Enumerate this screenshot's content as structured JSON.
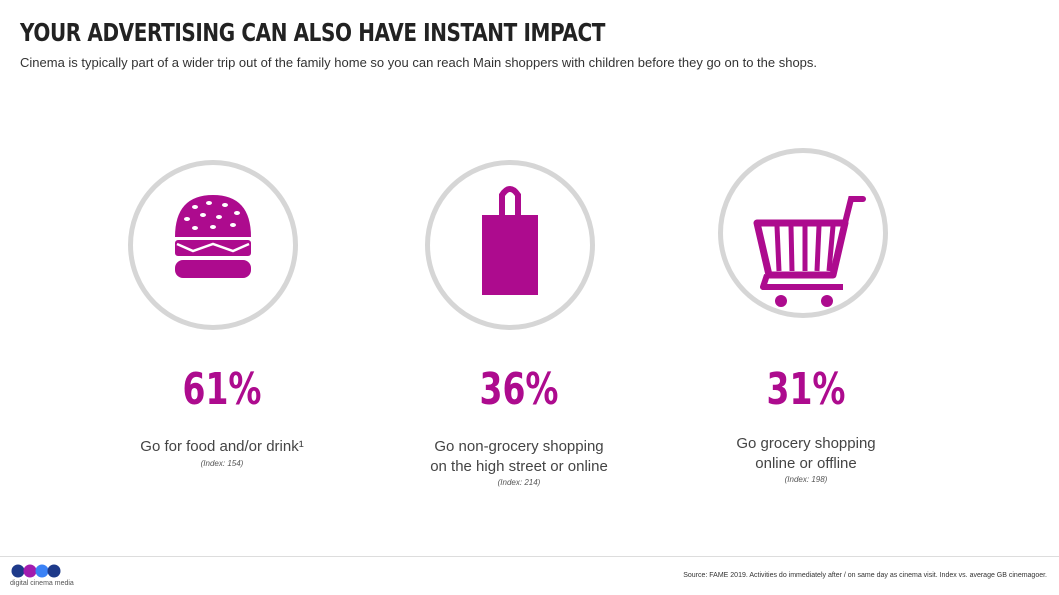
{
  "header": {
    "title": "YOUR ADVERTISING CAN ALSO HAVE INSTANT IMPACT",
    "subtitle": "Cinema is typically part of a wider trip out of the family home so you can reach Main shoppers with children before they go on to the shops."
  },
  "stats": [
    {
      "icon": "burger-icon",
      "value": "61%",
      "label_lines": [
        "Go for food and/or drink¹"
      ],
      "index": "(Index: 154)"
    },
    {
      "icon": "shopping-bag-icon",
      "value": "36%",
      "label_lines": [
        "Go non-grocery shopping",
        "on the high street or online"
      ],
      "index": "(Index: 214)"
    },
    {
      "icon": "shopping-cart-icon",
      "value": "31%",
      "label_lines": [
        "Go grocery shopping",
        "online or offline"
      ],
      "index": "(Index: 198)"
    }
  ],
  "footer": {
    "logo_text": "digital cinema media",
    "source": "Source: FAME 2019. Activities do immediately after / on same day as cinema visit. Index vs. average GB cinemagoer."
  },
  "colors": {
    "accent": "#ad0b8e",
    "circle_border": "#d6d6d6"
  }
}
